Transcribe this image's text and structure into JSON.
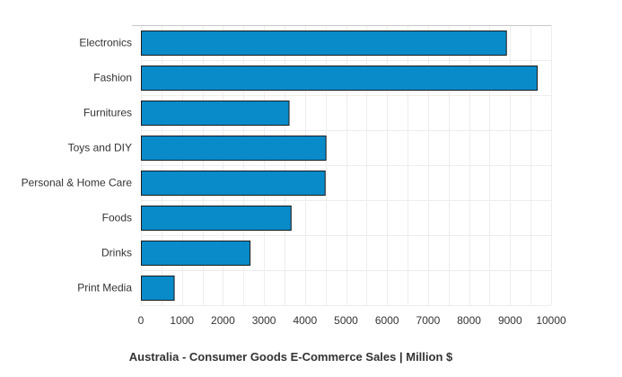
{
  "chart_data": {
    "type": "bar",
    "orientation": "horizontal",
    "title": "Australia - Consumer Goods E-Commerce Sales | Million $",
    "categories": [
      "Electronics",
      "Fashion",
      "Furnitures",
      "Toys and DIY",
      "Personal & Home Care",
      "Foods",
      "Drinks",
      "Print Media"
    ],
    "values": [
      8900,
      9650,
      3600,
      4500,
      4480,
      3650,
      2650,
      800
    ],
    "x_ticks": [
      0,
      1000,
      2000,
      3000,
      4000,
      5000,
      6000,
      7000,
      8000,
      9000,
      10000
    ],
    "xlim": [
      0,
      10000
    ],
    "grid": true,
    "bar_color": "#0a8bc9",
    "bar_edge_color": "#1a1a1a",
    "grid_color": "#ededed"
  }
}
